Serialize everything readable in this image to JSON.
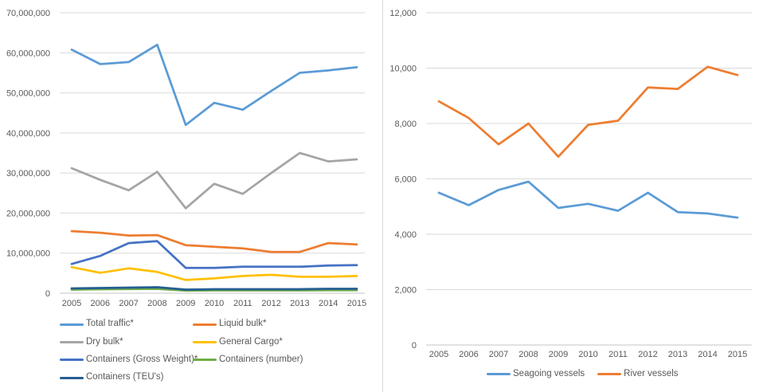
{
  "chart_data": [
    {
      "type": "line",
      "title": "",
      "xlabel": "",
      "ylabel": "",
      "ylim": [
        0,
        70000000
      ],
      "grid": true,
      "legend_position": "bottom-left-two-columns",
      "categories": [
        "2005",
        "2006",
        "2007",
        "2008",
        "2009",
        "2010",
        "2011",
        "2012",
        "2013",
        "2014",
        "2015"
      ],
      "y_ticks": [
        {
          "value": 0,
          "label": "0"
        },
        {
          "value": 10000000,
          "label": "10,000,000"
        },
        {
          "value": 20000000,
          "label": "20,000,000"
        },
        {
          "value": 30000000,
          "label": "30,000,000"
        },
        {
          "value": 40000000,
          "label": "40,000,000"
        },
        {
          "value": 50000000,
          "label": "50,000,000"
        },
        {
          "value": 60000000,
          "label": "60,000,000"
        },
        {
          "value": 70000000,
          "label": "70,000,000"
        }
      ],
      "series": [
        {
          "name": "Total traffic*",
          "color": "#5B9BD5",
          "values": [
            60800000,
            57200000,
            57700000,
            62000000,
            42000000,
            47500000,
            45800000,
            50500000,
            55000000,
            55600000,
            56400000
          ]
        },
        {
          "name": "Liquid bulk*",
          "color": "#ED7D31",
          "values": [
            15500000,
            15100000,
            14400000,
            14500000,
            12000000,
            11600000,
            11200000,
            10300000,
            10300000,
            12500000,
            12200000
          ]
        },
        {
          "name": "Dry bulk*",
          "color": "#A5A5A5",
          "values": [
            31200000,
            28300000,
            25700000,
            30300000,
            21200000,
            27300000,
            24800000,
            30000000,
            35000000,
            32900000,
            33400000
          ]
        },
        {
          "name": "General Cargo*",
          "color": "#FFC000",
          "values": [
            6500000,
            5100000,
            6200000,
            5300000,
            3300000,
            3700000,
            4300000,
            4600000,
            4100000,
            4100000,
            4300000
          ]
        },
        {
          "name": "Containers (Gross Weight)*",
          "color": "#4472C4",
          "values": [
            7300000,
            9300000,
            12500000,
            13000000,
            6300000,
            6300000,
            6600000,
            6600000,
            6600000,
            6900000,
            7000000
          ]
        },
        {
          "name": "Containers (number)",
          "color": "#70AD47",
          "values": [
            900000,
            1000000,
            1050000,
            1100000,
            650000,
            700000,
            700000,
            700000,
            700000,
            750000,
            750000
          ]
        },
        {
          "name": "Containers (TEU's)",
          "color": "#255E91",
          "values": [
            1200000,
            1300000,
            1400000,
            1500000,
            900000,
            1000000,
            1000000,
            1000000,
            1000000,
            1100000,
            1100000
          ]
        }
      ]
    },
    {
      "type": "line",
      "title": "",
      "xlabel": "",
      "ylabel": "",
      "ylim": [
        0,
        12000
      ],
      "grid": true,
      "legend_position": "bottom-center-row",
      "categories": [
        "2005",
        "2006",
        "2007",
        "2008",
        "2009",
        "2010",
        "2011",
        "2012",
        "2013",
        "2014",
        "2015"
      ],
      "y_ticks": [
        {
          "value": 0,
          "label": "0"
        },
        {
          "value": 2000,
          "label": "2,000"
        },
        {
          "value": 4000,
          "label": "4,000"
        },
        {
          "value": 6000,
          "label": "6,000"
        },
        {
          "value": 8000,
          "label": "8,000"
        },
        {
          "value": 10000,
          "label": "10,000"
        },
        {
          "value": 12000,
          "label": "12,000"
        }
      ],
      "series": [
        {
          "name": "Seagoing vessels",
          "color": "#5B9BD5",
          "values": [
            5500,
            5050,
            5600,
            5900,
            4950,
            5100,
            4850,
            5500,
            4800,
            4750,
            4600
          ]
        },
        {
          "name": "River vessels",
          "color": "#ED7D31",
          "values": [
            8800,
            8200,
            7250,
            8000,
            6800,
            7950,
            8100,
            9300,
            9250,
            10050,
            9750
          ]
        }
      ]
    }
  ],
  "colors": {
    "gridline": "#D9D9D9",
    "axis_line": "#C6C6C6",
    "tick_text": "#595959"
  }
}
